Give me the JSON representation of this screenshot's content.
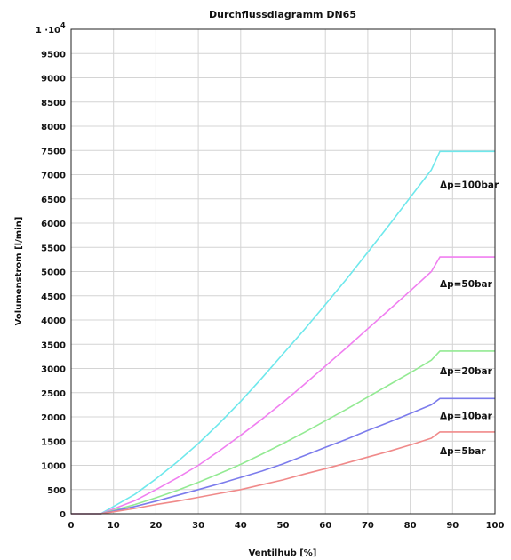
{
  "chart_data": {
    "type": "line",
    "title": "Durchflussdiagramm DN65",
    "xlabel": "Ventilhub [%]",
    "ylabel": "Volumenstrom [l/min]",
    "xlim": [
      0,
      100
    ],
    "ylim": [
      0,
      10000
    ],
    "grid": true,
    "xticks": [
      {
        "value": 0,
        "label": "0"
      },
      {
        "value": 10,
        "label": "10"
      },
      {
        "value": 20,
        "label": "20"
      },
      {
        "value": 30,
        "label": "30"
      },
      {
        "value": 40,
        "label": "40"
      },
      {
        "value": 50,
        "label": "50"
      },
      {
        "value": 60,
        "label": "60"
      },
      {
        "value": 70,
        "label": "70"
      },
      {
        "value": 80,
        "label": "80"
      },
      {
        "value": 90,
        "label": "90"
      },
      {
        "value": 100,
        "label": "100"
      }
    ],
    "yticks": [
      {
        "value": 0,
        "label": "0"
      },
      {
        "value": 500,
        "label": "500"
      },
      {
        "value": 1000,
        "label": "1000"
      },
      {
        "value": 1500,
        "label": "1500"
      },
      {
        "value": 2000,
        "label": "2000"
      },
      {
        "value": 2500,
        "label": "2500"
      },
      {
        "value": 3000,
        "label": "3000"
      },
      {
        "value": 3500,
        "label": "3500"
      },
      {
        "value": 4000,
        "label": "4000"
      },
      {
        "value": 4500,
        "label": "4500"
      },
      {
        "value": 5000,
        "label": "5000"
      },
      {
        "value": 5500,
        "label": "5500"
      },
      {
        "value": 6000,
        "label": "6000"
      },
      {
        "value": 6500,
        "label": "6500"
      },
      {
        "value": 7000,
        "label": "7000"
      },
      {
        "value": 7500,
        "label": "7500"
      },
      {
        "value": 8000,
        "label": "8000"
      },
      {
        "value": 8500,
        "label": "8500"
      },
      {
        "value": 9000,
        "label": "9000"
      },
      {
        "value": 9500,
        "label": "9500"
      },
      {
        "value": 10000,
        "label": "1 ·10",
        "sup": "4"
      }
    ],
    "series": [
      {
        "name": "Δp=100bar",
        "color": "#6fe8ec",
        "label_at": [
          87,
          6800
        ],
        "x": [
          0,
          7,
          10,
          15,
          20,
          25,
          30,
          35,
          40,
          45,
          50,
          55,
          60,
          65,
          70,
          75,
          80,
          85,
          87,
          90,
          95,
          100
        ],
        "y": [
          0,
          0,
          150,
          400,
          720,
          1070,
          1450,
          1870,
          2320,
          2800,
          3300,
          3800,
          4320,
          4850,
          5400,
          5960,
          6530,
          7100,
          7480,
          7480,
          7480,
          7480
        ]
      },
      {
        "name": "Δp=50bar",
        "color": "#f07ff0",
        "label_at": [
          87,
          4750
        ],
        "x": [
          0,
          7,
          10,
          15,
          20,
          25,
          30,
          35,
          40,
          45,
          50,
          55,
          60,
          65,
          70,
          75,
          80,
          85,
          87,
          90,
          95,
          100
        ],
        "y": [
          0,
          0,
          100,
          270,
          500,
          740,
          1000,
          1300,
          1620,
          1950,
          2300,
          2670,
          3050,
          3430,
          3820,
          4210,
          4600,
          5000,
          5300,
          5300,
          5300,
          5300
        ]
      },
      {
        "name": "Δp=20bar",
        "color": "#93ea93",
        "label_at": [
          87,
          2950
        ],
        "x": [
          0,
          7,
          10,
          15,
          20,
          25,
          30,
          35,
          40,
          45,
          50,
          55,
          60,
          65,
          70,
          75,
          80,
          85,
          87,
          90,
          95,
          100
        ],
        "y": [
          0,
          0,
          70,
          190,
          330,
          480,
          650,
          830,
          1020,
          1230,
          1450,
          1680,
          1920,
          2160,
          2410,
          2660,
          2910,
          3170,
          3360,
          3360,
          3360,
          3360
        ]
      },
      {
        "name": "Δp=10bar",
        "color": "#7c7cec",
        "label_at": [
          87,
          2030
        ],
        "x": [
          0,
          7,
          10,
          15,
          20,
          25,
          30,
          35,
          40,
          45,
          50,
          55,
          60,
          65,
          70,
          75,
          80,
          85,
          87,
          90,
          95,
          100
        ],
        "y": [
          0,
          0,
          55,
          150,
          260,
          380,
          500,
          620,
          750,
          880,
          1030,
          1200,
          1370,
          1540,
          1720,
          1890,
          2070,
          2250,
          2380,
          2380,
          2380,
          2380
        ]
      },
      {
        "name": "Δp=5bar",
        "color": "#f08a8a",
        "label_at": [
          87,
          1300
        ],
        "x": [
          0,
          7,
          10,
          15,
          20,
          25,
          30,
          35,
          40,
          45,
          50,
          55,
          60,
          65,
          70,
          75,
          80,
          85,
          87,
          90,
          95,
          100
        ],
        "y": [
          0,
          0,
          40,
          110,
          190,
          260,
          340,
          420,
          500,
          600,
          700,
          820,
          930,
          1050,
          1170,
          1290,
          1420,
          1560,
          1690,
          1690,
          1690,
          1690
        ]
      }
    ]
  }
}
